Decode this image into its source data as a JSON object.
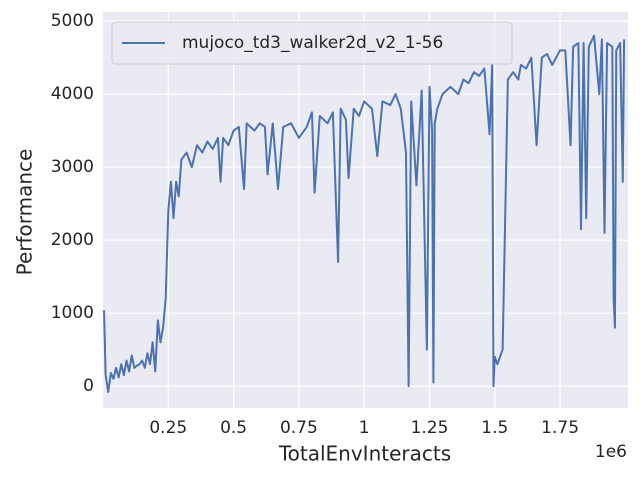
{
  "chart_data": {
    "type": "line",
    "x_label": "TotalEnvInteracts",
    "y_label": "Performance",
    "x_offset_label": "1e6",
    "legend": "upper left",
    "grid": true,
    "xlim": [
      0,
      2.01
    ],
    "ylim": [
      -300,
      5125
    ],
    "xticks": [
      0.25,
      0.5,
      0.75,
      1.0,
      1.25,
      1.5,
      1.75
    ],
    "yticks": [
      0,
      1000,
      2000,
      3000,
      4000,
      5000
    ],
    "x": [
      0.004,
      0.01,
      0.02,
      0.03,
      0.04,
      0.05,
      0.06,
      0.07,
      0.08,
      0.09,
      0.1,
      0.11,
      0.12,
      0.13,
      0.14,
      0.15,
      0.16,
      0.17,
      0.18,
      0.19,
      0.2,
      0.21,
      0.22,
      0.23,
      0.24,
      0.25,
      0.26,
      0.27,
      0.28,
      0.29,
      0.3,
      0.32,
      0.34,
      0.36,
      0.38,
      0.4,
      0.42,
      0.44,
      0.45,
      0.46,
      0.48,
      0.5,
      0.52,
      0.54,
      0.55,
      0.58,
      0.6,
      0.62,
      0.63,
      0.65,
      0.67,
      0.69,
      0.72,
      0.75,
      0.78,
      0.8,
      0.81,
      0.83,
      0.86,
      0.88,
      0.9,
      0.91,
      0.93,
      0.94,
      0.96,
      0.98,
      1.0,
      1.03,
      1.05,
      1.07,
      1.1,
      1.12,
      1.14,
      1.16,
      1.17,
      1.18,
      1.2,
      1.22,
      1.24,
      1.25,
      1.26,
      1.265,
      1.27,
      1.28,
      1.3,
      1.33,
      1.36,
      1.38,
      1.4,
      1.42,
      1.44,
      1.46,
      1.48,
      1.49,
      1.495,
      1.5,
      1.51,
      1.53,
      1.55,
      1.57,
      1.59,
      1.6,
      1.62,
      1.64,
      1.66,
      1.68,
      1.7,
      1.72,
      1.75,
      1.77,
      1.79,
      1.8,
      1.82,
      1.83,
      1.84,
      1.85,
      1.86,
      1.88,
      1.9,
      1.91,
      1.92,
      1.93,
      1.95,
      1.955,
      1.96,
      1.965,
      1.98,
      1.99,
      1.995
    ],
    "series": [
      {
        "name": "mujoco_td3_walker2d_v2_1-56",
        "color": "#4c72b0",
        "values": [
          1040,
          150,
          -80,
          180,
          100,
          250,
          120,
          300,
          150,
          350,
          200,
          420,
          250,
          280,
          300,
          350,
          250,
          450,
          300,
          600,
          200,
          900,
          600,
          800,
          1200,
          2400,
          2800,
          2300,
          2800,
          2600,
          3100,
          3200,
          3000,
          3300,
          3200,
          3350,
          3250,
          3400,
          2800,
          3400,
          3300,
          3500,
          3550,
          2700,
          3600,
          3500,
          3600,
          3550,
          2900,
          3600,
          2700,
          3550,
          3600,
          3400,
          3550,
          3750,
          2650,
          3700,
          3600,
          3750,
          1700,
          3800,
          3650,
          2850,
          3800,
          3700,
          3900,
          3800,
          3150,
          3900,
          3850,
          4000,
          3800,
          3200,
          0,
          3900,
          2750,
          4050,
          500,
          4100,
          3500,
          50,
          3600,
          3800,
          4000,
          4100,
          4000,
          4200,
          4150,
          4300,
          4250,
          4350,
          3450,
          4400,
          0,
          400,
          300,
          500,
          4200,
          4300,
          4200,
          4400,
          4350,
          4500,
          3300,
          4500,
          4550,
          4400,
          4600,
          4600,
          3300,
          4650,
          4700,
          2150,
          4700,
          2300,
          4650,
          4800,
          4000,
          4750,
          2100,
          4700,
          4650,
          1200,
          800,
          4600,
          4700,
          2800,
          4750
        ]
      }
    ]
  }
}
